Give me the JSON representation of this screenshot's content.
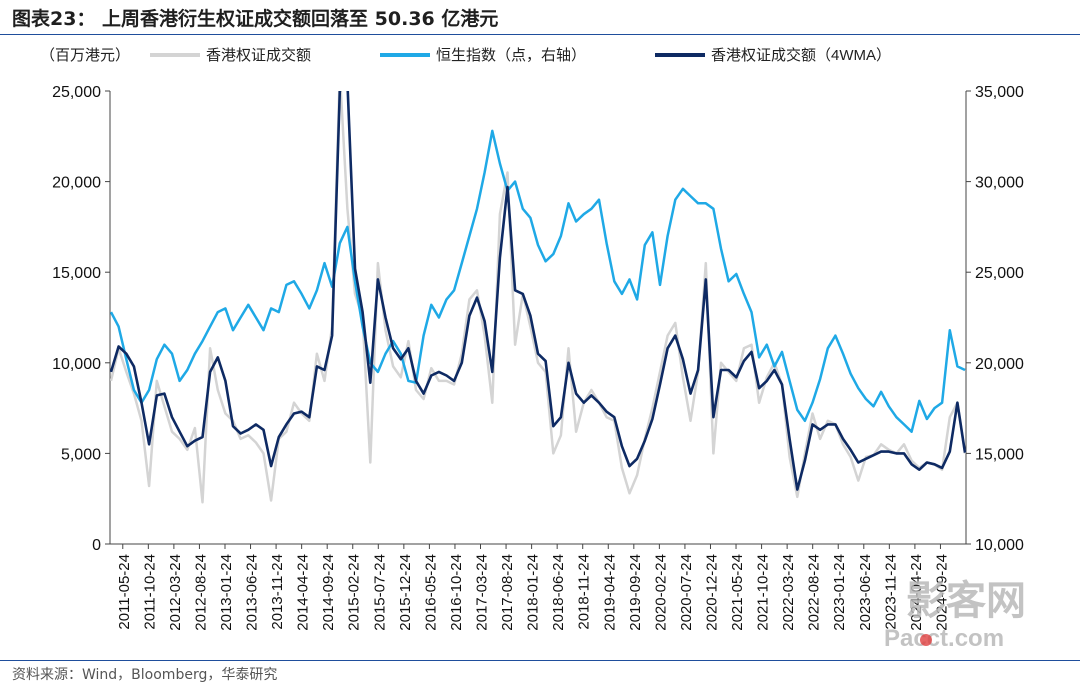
{
  "title": "图表23： 上周香港衍生权证成交额回落至 50.36 亿港元",
  "source": "资料来源：Wind，Bloomberg，华泰研究",
  "watermark": {
    "cn": "影客网",
    "en": "Pacct.com"
  },
  "chart_data": {
    "type": "line",
    "legend": {
      "unit_label": "（百万港元）",
      "position": "top",
      "entries": [
        {
          "name": "香港权证成交额",
          "color": "#d4d4d4"
        },
        {
          "name": "恒生指数（点，右轴）",
          "color": "#1fa9e6"
        },
        {
          "name": "香港权证成交额（4WMA）",
          "color": "#0e2a63"
        }
      ]
    },
    "x_labels": [
      "2011-05-24",
      "2011-10-24",
      "2012-03-24",
      "2012-08-24",
      "2013-01-24",
      "2013-06-24",
      "2013-11-24",
      "2014-04-24",
      "2014-09-24",
      "2015-02-24",
      "2015-07-24",
      "2015-12-24",
      "2016-05-24",
      "2016-10-24",
      "2017-03-24",
      "2017-08-24",
      "2018-01-24",
      "2018-06-24",
      "2018-11-24",
      "2019-04-24",
      "2019-09-24",
      "2020-02-24",
      "2020-07-24",
      "2020-12-24",
      "2021-05-24",
      "2021-10-24",
      "2022-03-24",
      "2022-08-24",
      "2023-01-24",
      "2023-06-24",
      "2023-11-24",
      "2024-04-24",
      "2024-09-24"
    ],
    "y_left": {
      "min": 0,
      "max": 25000,
      "ticks": [
        "0",
        "5,000",
        "10,000",
        "15,000",
        "20,000",
        "25,000"
      ]
    },
    "y_right": {
      "min": 10000,
      "max": 35000,
      "ticks": [
        "10,000",
        "15,000",
        "20,000",
        "25,000",
        "30,000",
        "35,000"
      ]
    },
    "series": [
      {
        "name": "香港权证成交额",
        "axis": "left",
        "values": [
          9000,
          10800,
          9500,
          8300,
          6800,
          3200,
          9000,
          7600,
          6200,
          5800,
          5200,
          6400,
          2300,
          10800,
          8500,
          7200,
          6800,
          5800,
          6000,
          5600,
          5000,
          2400,
          5800,
          6200,
          7800,
          7200,
          6800,
          10500,
          9000,
          12000,
          26000,
          18500,
          13800,
          12500,
          4500,
          15500,
          11800,
          9800,
          9200,
          11200,
          8500,
          8000,
          9700,
          9000,
          9000,
          8800,
          10500,
          13500,
          14000,
          11500,
          7800,
          18200,
          20500,
          11000,
          13800,
          12000,
          10000,
          9500,
          5000,
          6000,
          10800,
          6200,
          7800,
          8500,
          7800,
          7000,
          6800,
          4200,
          2800,
          3800,
          5800,
          7500,
          9500,
          11500,
          12200,
          9200,
          6800,
          9500,
          15500,
          5000,
          10000,
          9500,
          9000,
          10800,
          11000,
          7800,
          9200,
          10000,
          8800,
          4800,
          2600,
          5000,
          7200,
          5800,
          6800,
          6600,
          5500,
          4800,
          3500,
          4800,
          4900,
          5500,
          5200,
          5000,
          5500,
          4600,
          4200,
          4500,
          4400,
          4100,
          7000,
          7800,
          5000
        ]
      },
      {
        "name": "恒生指数（点，右轴）",
        "axis": "right",
        "values": [
          22800,
          22000,
          20200,
          18500,
          17800,
          18500,
          20200,
          21000,
          20500,
          19000,
          19600,
          20500,
          21200,
          22000,
          22800,
          23000,
          21800,
          22500,
          23200,
          22500,
          21800,
          23000,
          22800,
          24300,
          24500,
          23800,
          23000,
          24000,
          25500,
          24200,
          26600,
          27500,
          24500,
          22000,
          20000,
          19500,
          20500,
          21200,
          20500,
          19000,
          18900,
          21500,
          23200,
          22500,
          23500,
          24000,
          25500,
          27000,
          28500,
          30500,
          32800,
          31000,
          29500,
          30000,
          28500,
          28000,
          26500,
          25600,
          26000,
          27000,
          28800,
          27800,
          28200,
          28500,
          29000,
          26600,
          24500,
          23800,
          24600,
          23500,
          26500,
          27200,
          24300,
          27000,
          29000,
          29600,
          29200,
          28800,
          28800,
          28500,
          26300,
          24500,
          24900,
          23800,
          22800,
          20300,
          21000,
          19800,
          20600,
          19000,
          17400,
          16800,
          17800,
          19100,
          20800,
          21500,
          20500,
          19400,
          18600,
          18000,
          17600,
          18400,
          17600,
          17000,
          16600,
          16200,
          17900,
          16900,
          17500,
          17800,
          21800,
          19800,
          19600
        ]
      },
      {
        "name": "香港权证成交额（4WMA）",
        "axis": "left",
        "values": [
          9500,
          10900,
          10500,
          9800,
          7800,
          5500,
          8200,
          8300,
          7000,
          6200,
          5400,
          5700,
          5900,
          9500,
          10300,
          9000,
          6500,
          6100,
          6300,
          6600,
          6300,
          4300,
          5900,
          6600,
          7200,
          7300,
          7000,
          9800,
          9600,
          11500,
          25000,
          25500,
          15200,
          12800,
          8900,
          14600,
          12500,
          10800,
          10200,
          10800,
          9000,
          8300,
          9300,
          9500,
          9300,
          9000,
          10000,
          12600,
          13600,
          12300,
          9500,
          15800,
          19700,
          14000,
          13800,
          12600,
          10500,
          10100,
          6500,
          7000,
          10000,
          8300,
          7800,
          8200,
          7800,
          7300,
          7000,
          5400,
          4300,
          4700,
          5700,
          6900,
          8800,
          10800,
          11500,
          10200,
          8300,
          9600,
          14600,
          7000,
          9600,
          9600,
          9200,
          10100,
          10600,
          8600,
          9000,
          9600,
          8800,
          5800,
          3000,
          4600,
          6600,
          6300,
          6600,
          6600,
          5800,
          5200,
          4500,
          4700,
          4900,
          5100,
          5100,
          5000,
          5000,
          4400,
          4100,
          4500,
          4400,
          4200,
          5100,
          7800,
          5036
        ]
      }
    ]
  }
}
